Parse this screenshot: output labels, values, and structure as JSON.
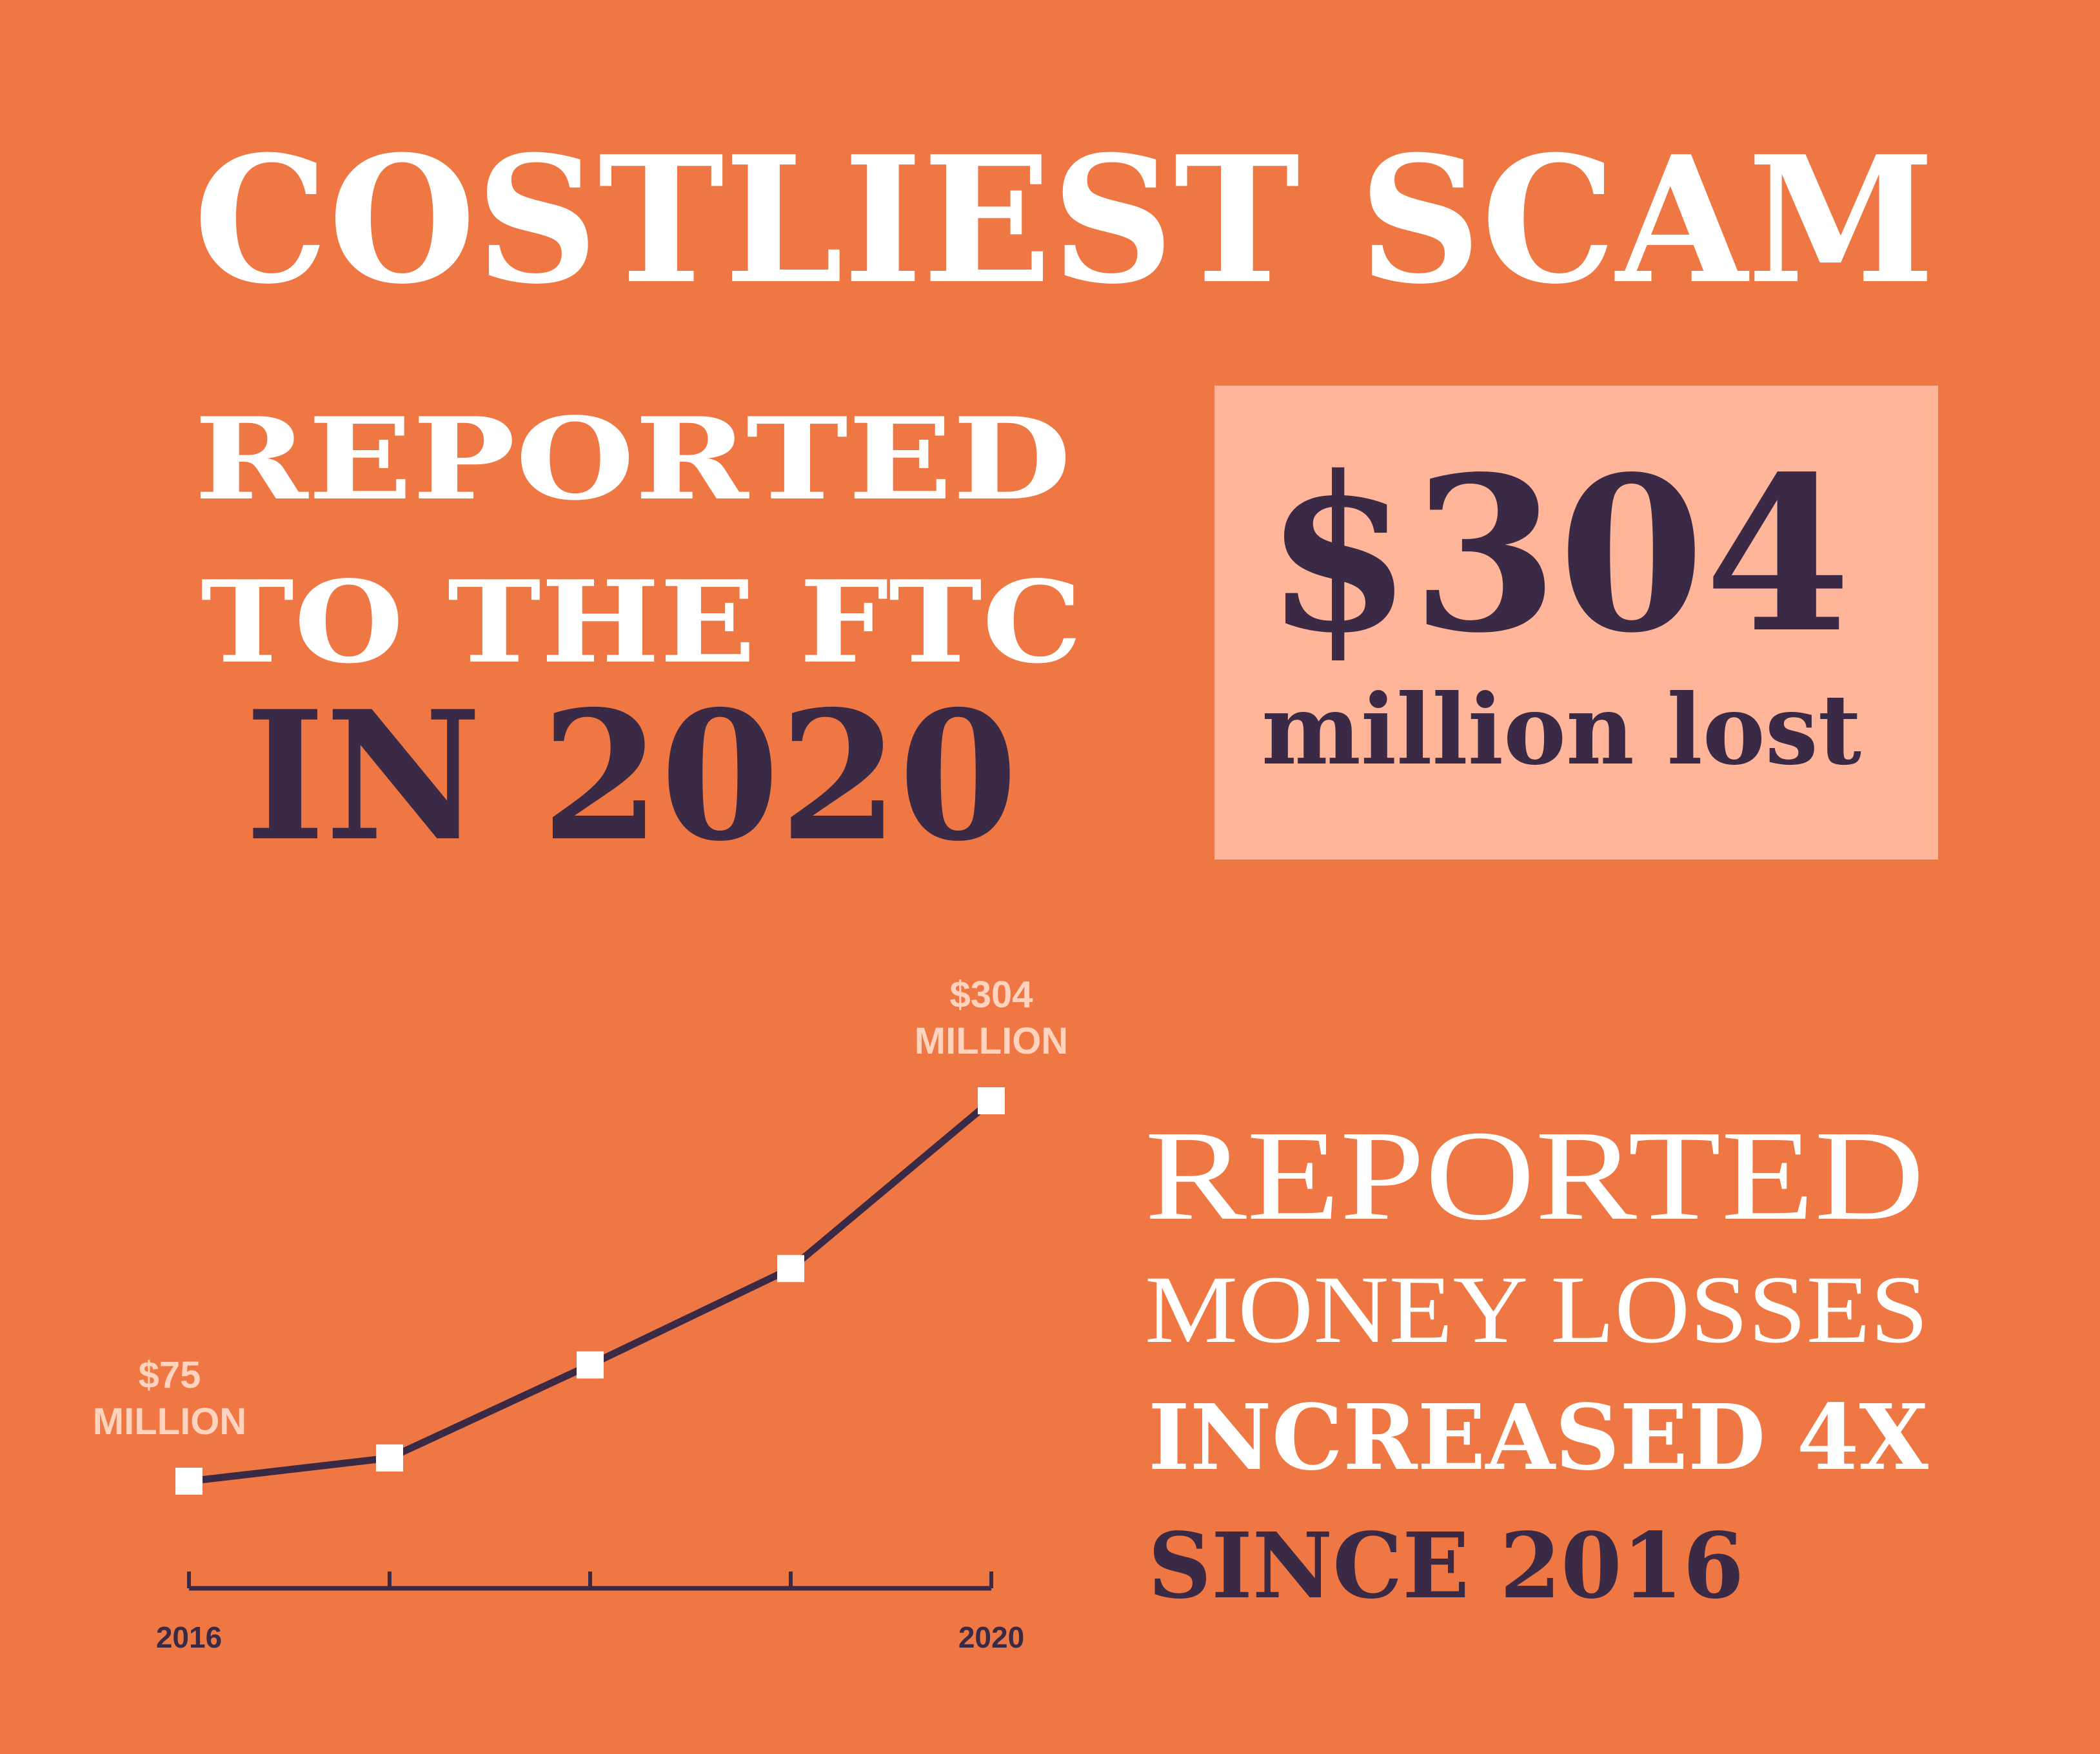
{
  "headline": {
    "title": "COSTLIEST SCAM",
    "line1": "REPORTED",
    "line2": "TO THE FTC",
    "line3": "IN 2020"
  },
  "callout": {
    "amount": "$304",
    "caption": "million lost"
  },
  "summary": {
    "line1": "REPORTED",
    "line2": "MONEY LOSSES",
    "line3": "INCREASED 4X",
    "line4": "SINCE 2016"
  },
  "chart_data": {
    "type": "line",
    "categories": [
      "2016",
      null,
      null,
      null,
      "2020"
    ],
    "values": [
      75,
      89,
      145,
      203,
      304
    ],
    "value_labels": [
      "$75\nMILLION",
      null,
      null,
      null,
      "$304\nMILLION"
    ],
    "color": "#3b2a45",
    "marker_color": "#ffffff",
    "label_color": "#ffd3be"
  }
}
